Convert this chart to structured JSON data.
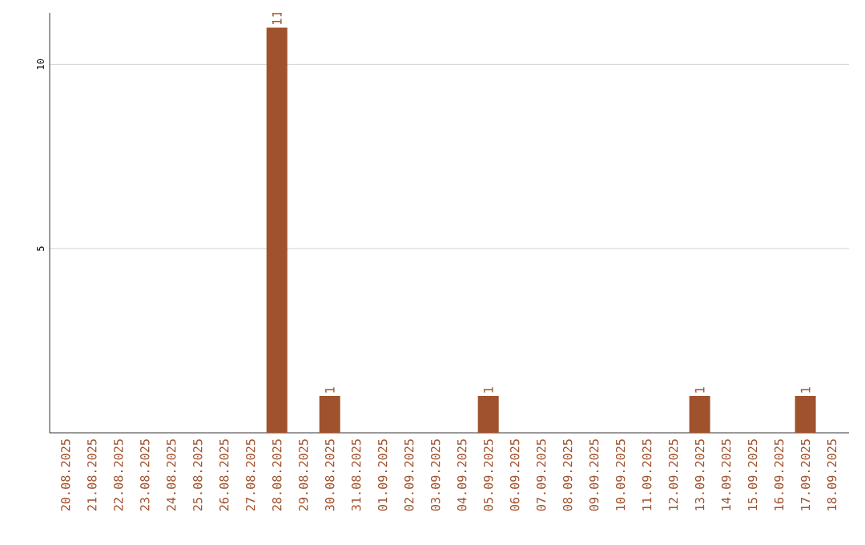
{
  "chart_data": {
    "type": "bar",
    "color": "#a0522d",
    "categories": [
      "20.08.2025",
      "21.08.2025",
      "22.08.2025",
      "23.08.2025",
      "24.08.2025",
      "25.08.2025",
      "26.08.2025",
      "27.08.2025",
      "28.08.2025",
      "29.08.2025",
      "30.08.2025",
      "31.08.2025",
      "01.09.2025",
      "02.09.2025",
      "03.09.2025",
      "04.09.2025",
      "05.09.2025",
      "06.09.2025",
      "07.09.2025",
      "08.09.2025",
      "09.09.2025",
      "10.09.2025",
      "11.09.2025",
      "12.09.2025",
      "13.09.2025",
      "14.09.2025",
      "15.09.2025",
      "16.09.2025",
      "17.09.2025",
      "18.09.2025"
    ],
    "values": [
      0,
      0,
      0,
      0,
      0,
      0,
      0,
      0,
      11,
      0,
      1,
      0,
      0,
      0,
      0,
      0,
      1,
      0,
      0,
      0,
      0,
      0,
      0,
      0,
      1,
      0,
      0,
      0,
      1,
      0
    ],
    "value_labels": [
      null,
      null,
      null,
      null,
      null,
      null,
      null,
      null,
      "11",
      null,
      "1",
      null,
      null,
      null,
      null,
      null,
      "1",
      null,
      null,
      null,
      null,
      null,
      null,
      null,
      "1",
      null,
      null,
      null,
      "1",
      null
    ],
    "ylim": [
      0,
      11.4
    ],
    "yticks": [
      5,
      10
    ],
    "grid": "y"
  }
}
